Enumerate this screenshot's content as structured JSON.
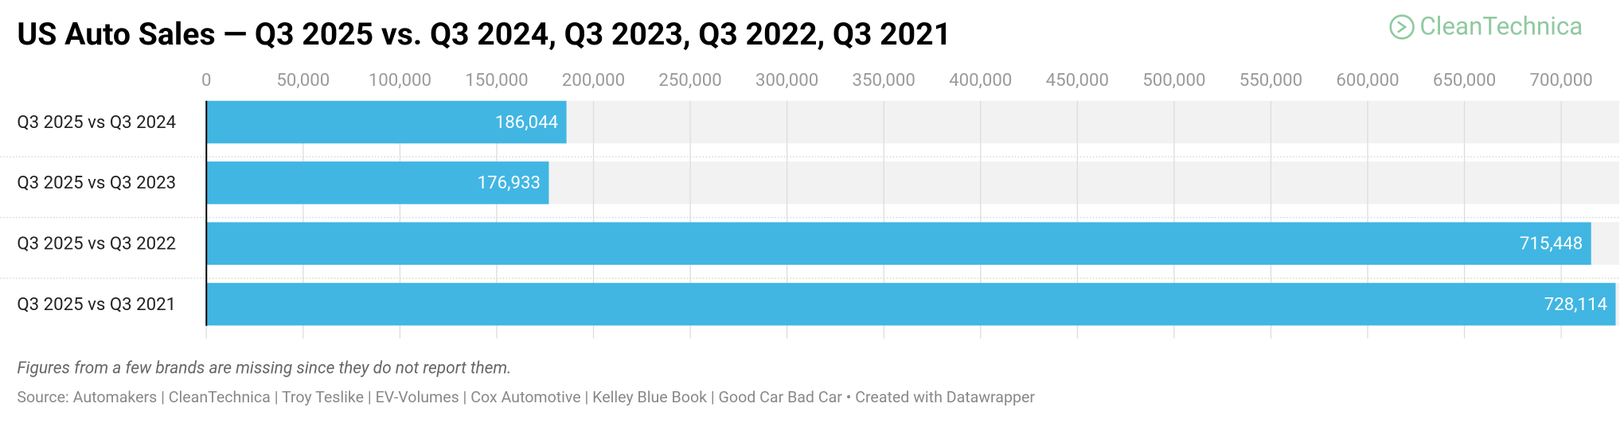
{
  "logo": "CleanTechnica",
  "chart_data": {
    "type": "hbar",
    "title": "US Auto Sales — Q3 2025 vs. Q3 2024, Q3 2023, Q3 2022, Q3 2021",
    "categories": [
      "Q3 2025 vs Q3 2024",
      "Q3 2025 vs Q3 2023",
      "Q3 2025 vs Q3 2022",
      "Q3 2025 vs Q3 2021"
    ],
    "values": [
      186044,
      176933,
      715448,
      728114
    ],
    "value_labels": [
      "186,044",
      "176,933",
      "715,448",
      "728,114"
    ],
    "color": "#41b6e3",
    "xlim": [
      0,
      730000
    ],
    "xticks": [
      0,
      {
        "value": 50000,
        "label": "50,000"
      },
      {
        "value": 100000,
        "label": "100,000"
      },
      {
        "value": 150000,
        "label": "150,000"
      },
      {
        "value": 200000,
        "label": "200,000"
      },
      {
        "value": 250000,
        "label": "250,000"
      },
      {
        "value": 300000,
        "label": "300,000"
      },
      {
        "value": 350000,
        "label": "350,000"
      },
      {
        "value": 400000,
        "label": "400,000"
      },
      {
        "value": 450000,
        "label": "450,000"
      },
      {
        "value": 500000,
        "label": "500,000"
      },
      {
        "value": 550000,
        "label": "550,000"
      },
      {
        "value": 600000,
        "label": "600,000"
      },
      {
        "value": 650000,
        "label": "650,000"
      },
      {
        "value": 700000,
        "label": "700,000"
      }
    ],
    "grid": true,
    "note": "Figures from a few brands are missing since they do not report them.",
    "source": "Source: Automakers | CleanTechnica | Troy Teslike | EV-Volumes | Cox Automotive | Kelley Blue Book | Good Car Bad Car • Created with Datawrapper"
  }
}
